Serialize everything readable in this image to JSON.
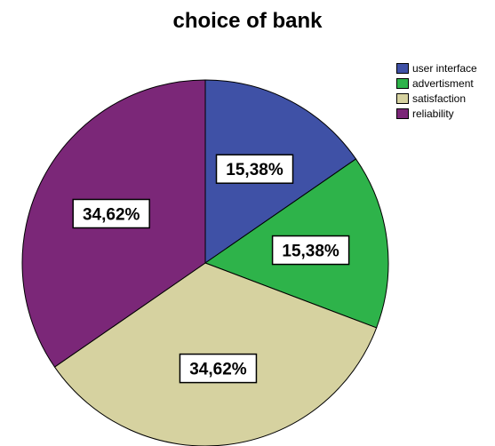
{
  "chart_data": {
    "type": "pie",
    "title": "choice of bank",
    "slices": [
      {
        "label": "user interface",
        "value": 15.38,
        "display": "15,38%",
        "color": "#3f51a6"
      },
      {
        "label": "advertisment",
        "value": 15.38,
        "display": "15,38%",
        "color": "#2eb34a"
      },
      {
        "label": "satisfaction",
        "value": 34.62,
        "display": "34,62%",
        "color": "#d6d2a0"
      },
      {
        "label": "reliability",
        "value": 34.62,
        "display": "34,62%",
        "color": "#7b2778"
      }
    ],
    "legend_position": "top-right",
    "start_angle": "12 o'clock",
    "direction": "clockwise"
  }
}
